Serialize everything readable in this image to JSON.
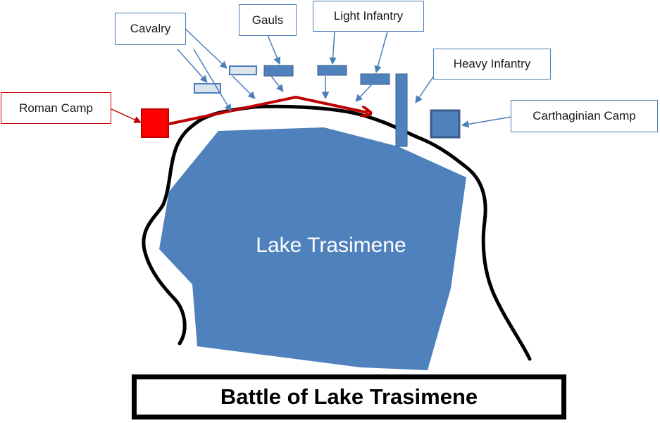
{
  "labels": {
    "cavalry": "Cavalry",
    "gauls": "Gauls",
    "light_infantry": "Light Infantry",
    "heavy_infantry": "Heavy Infantry",
    "roman_camp": "Roman Camp",
    "carthaginian_camp": "Carthaginian Camp",
    "lake": "Lake Trasimene"
  },
  "title": "Battle of Lake Trasimene",
  "colors": {
    "lake": "#4f81bd",
    "carthaginian_units": "#4f81bd",
    "cavalry_fill": "#dde4ee",
    "roman": "#ff0000",
    "roman_path": "#c00000",
    "callout_border": "#4a7ebb",
    "shoreline": "#000000"
  }
}
